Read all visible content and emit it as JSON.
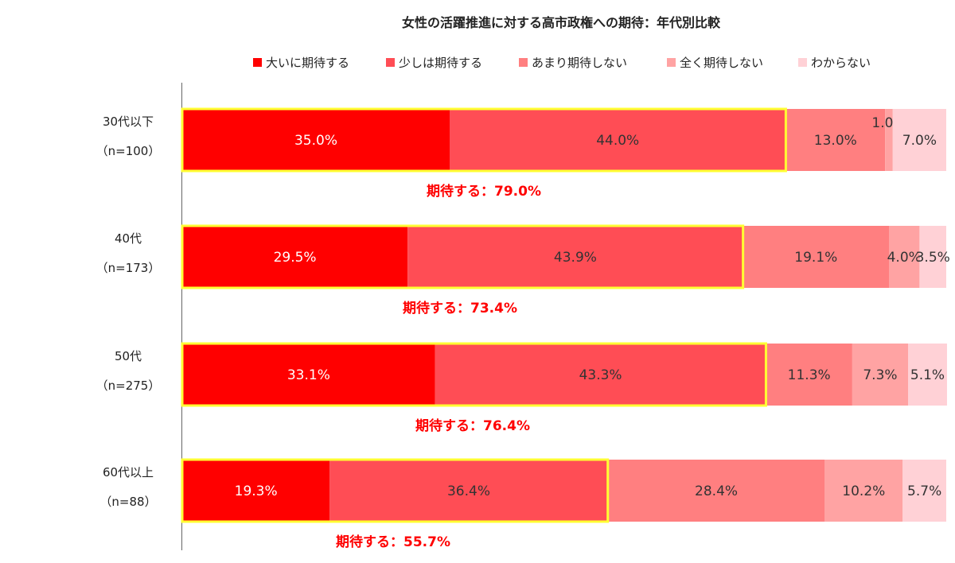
{
  "chart_data": {
    "type": "bar",
    "orientation": "horizontal",
    "stacked": true,
    "percent": true,
    "title": "女性の活躍推進に対する高市政権への期待：年代別比較",
    "legend_position": "top",
    "categories": [
      {
        "label": "30代以下",
        "n": "（n=100）"
      },
      {
        "label": "40代",
        "n": "（n=173）"
      },
      {
        "label": "50代",
        "n": "（n=275）"
      },
      {
        "label": "60代以上",
        "n": "（n=88）"
      }
    ],
    "series": [
      {
        "name": "大いに期待する",
        "color": "#ff0000",
        "label_color": "#ffffff",
        "values": [
          35.0,
          29.5,
          33.1,
          19.3
        ],
        "labels": [
          "35.0%",
          "29.5%",
          "33.1%",
          "19.3%"
        ]
      },
      {
        "name": "少しは期待する",
        "color": "#ff4d55",
        "label_color": "#333333",
        "values": [
          44.0,
          43.9,
          43.3,
          36.4
        ],
        "labels": [
          "44.0%",
          "43.9%",
          "43.3%",
          "36.4%"
        ]
      },
      {
        "name": "あまり期待しない",
        "color": "#ff7f80",
        "label_color": "#333333",
        "values": [
          13.0,
          19.1,
          11.3,
          28.4
        ],
        "labels": [
          "13.0%",
          "19.1%",
          "11.3%",
          "28.4%"
        ]
      },
      {
        "name": "全く期待しない",
        "color": "#ffa3a3",
        "label_color": "#333333",
        "values": [
          1.0,
          4.0,
          7.3,
          10.2
        ],
        "labels": [
          "1.0%",
          "4.0%",
          "7.3%",
          "10.2%"
        ]
      },
      {
        "name": "わからない",
        "color": "#ffd1d6",
        "label_color": "#333333",
        "values": [
          7.0,
          3.5,
          5.1,
          5.7
        ],
        "labels": [
          "7.0%",
          "3.5%",
          "5.1%",
          "5.7%"
        ]
      }
    ],
    "totals": {
      "labels": [
        "期待する：79.0%",
        "期待する：73.4%",
        "期待する：76.4%",
        "期待する：55.7%"
      ],
      "color": "#ff0000",
      "highlight_color": "#ffff33"
    },
    "xlim": [
      0,
      100
    ]
  }
}
